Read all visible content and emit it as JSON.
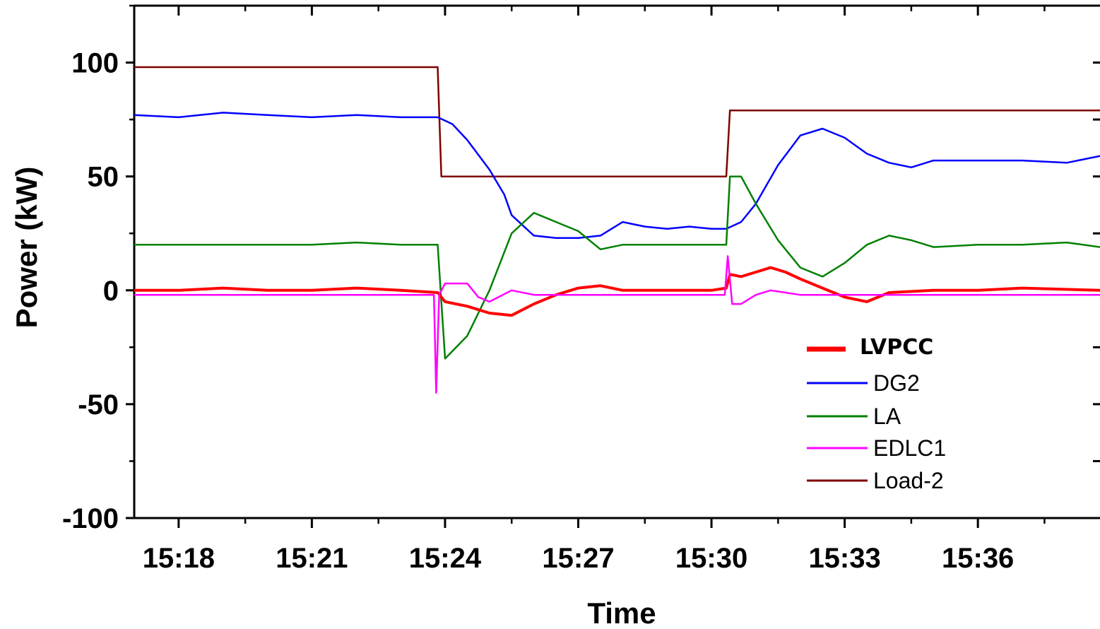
{
  "chart_data": {
    "type": "line",
    "title": "",
    "xlabel": "Time",
    "ylabel": "Power (kW)",
    "xlim": [
      "15:17:00",
      "15:38:45"
    ],
    "ylim": [
      -100,
      125
    ],
    "x_ticks": [
      "15:18",
      "15:21",
      "15:24",
      "15:27",
      "15:30",
      "15:33",
      "15:36"
    ],
    "y_ticks": [
      "100",
      "50",
      "0",
      "-50",
      "-100"
    ],
    "legend_position": "lower-right",
    "grid": false,
    "series": [
      {
        "name": "LVPCC",
        "color": "#ff0000",
        "x": [
          "15:17:00",
          "15:18:00",
          "15:19:00",
          "15:20:00",
          "15:21:00",
          "15:22:00",
          "15:23:00",
          "15:23:50",
          "15:24:00",
          "15:24:30",
          "15:25:00",
          "15:25:30",
          "15:26:00",
          "15:26:30",
          "15:27:00",
          "15:27:30",
          "15:28:00",
          "15:29:00",
          "15:30:00",
          "15:30:20",
          "15:30:25",
          "15:30:40",
          "15:31:00",
          "15:31:20",
          "15:31:40",
          "15:32:00",
          "15:32:30",
          "15:33:00",
          "15:33:30",
          "15:34:00",
          "15:35:00",
          "15:36:00",
          "15:37:00",
          "15:38:45"
        ],
        "y": [
          0,
          0,
          1,
          0,
          0,
          1,
          0,
          -1,
          -5,
          -7,
          -10,
          -11,
          -6,
          -2,
          1,
          2,
          0,
          0,
          0,
          1,
          7,
          6,
          8,
          10,
          8,
          5,
          1,
          -3,
          -5,
          -1,
          0,
          0,
          1,
          0
        ]
      },
      {
        "name": "DG2",
        "color": "#0000ff",
        "x": [
          "15:17:00",
          "15:18:00",
          "15:19:00",
          "15:20:00",
          "15:21:00",
          "15:22:00",
          "15:23:00",
          "15:23:50",
          "15:24:10",
          "15:24:30",
          "15:25:00",
          "15:25:20",
          "15:25:30",
          "15:26:00",
          "15:26:30",
          "15:27:00",
          "15:27:30",
          "15:28:00",
          "15:28:30",
          "15:29:00",
          "15:29:30",
          "15:30:00",
          "15:30:20",
          "15:30:40",
          "15:31:00",
          "15:31:30",
          "15:32:00",
          "15:32:30",
          "15:33:00",
          "15:33:30",
          "15:34:00",
          "15:34:30",
          "15:35:00",
          "15:36:00",
          "15:37:00",
          "15:38:00",
          "15:38:45"
        ],
        "y": [
          77,
          76,
          78,
          77,
          76,
          77,
          76,
          76,
          73,
          66,
          53,
          42,
          33,
          24,
          23,
          23,
          24,
          30,
          28,
          27,
          28,
          27,
          27,
          30,
          38,
          55,
          68,
          71,
          67,
          60,
          56,
          54,
          57,
          57,
          57,
          56,
          59
        ]
      },
      {
        "name": "LA",
        "color": "#008000",
        "x": [
          "15:17:00",
          "15:18:00",
          "15:19:00",
          "15:20:00",
          "15:21:00",
          "15:22:00",
          "15:23:00",
          "15:23:50",
          "15:23:55",
          "15:24:00",
          "15:24:30",
          "15:25:00",
          "15:25:30",
          "15:26:00",
          "15:26:30",
          "15:27:00",
          "15:27:30",
          "15:28:00",
          "15:29:00",
          "15:30:00",
          "15:30:20",
          "15:30:25",
          "15:30:40",
          "15:31:00",
          "15:31:30",
          "15:32:00",
          "15:32:30",
          "15:33:00",
          "15:33:30",
          "15:34:00",
          "15:34:30",
          "15:35:00",
          "15:36:00",
          "15:37:00",
          "15:38:00",
          "15:38:45"
        ],
        "y": [
          20,
          20,
          20,
          20,
          20,
          21,
          20,
          20,
          -5,
          -30,
          -20,
          0,
          25,
          34,
          30,
          26,
          18,
          20,
          20,
          20,
          20,
          50,
          50,
          38,
          22,
          10,
          6,
          12,
          20,
          24,
          22,
          19,
          20,
          20,
          21,
          19
        ]
      },
      {
        "name": "EDLC1",
        "color": "#ff00ff",
        "x": [
          "15:17:00",
          "15:18:00",
          "15:19:00",
          "15:20:00",
          "15:21:00",
          "15:22:00",
          "15:23:00",
          "15:23:45",
          "15:23:48",
          "15:23:52",
          "15:24:00",
          "15:24:30",
          "15:24:45",
          "15:25:00",
          "15:25:30",
          "15:26:00",
          "15:26:30",
          "15:27:00",
          "15:28:00",
          "15:29:00",
          "15:30:00",
          "15:30:18",
          "15:30:22",
          "15:30:28",
          "15:30:40",
          "15:31:00",
          "15:31:20",
          "15:31:40",
          "15:32:00",
          "15:33:00",
          "15:34:00",
          "15:35:00",
          "15:36:00",
          "15:37:00",
          "15:38:45"
        ],
        "y": [
          -2,
          -2,
          -2,
          -2,
          -2,
          -2,
          -2,
          -2,
          -45,
          -2,
          3,
          3,
          -3,
          -5,
          0,
          -2,
          -2,
          -2,
          -2,
          -2,
          -2,
          -2,
          15,
          -6,
          -6,
          -2,
          0,
          -1,
          -2,
          -2,
          -2,
          -2,
          -2,
          -2,
          -2
        ]
      },
      {
        "name": "Load-2",
        "color": "#800000",
        "x": [
          "15:17:00",
          "15:23:50",
          "15:23:55",
          "15:30:20",
          "15:30:25",
          "15:38:45"
        ],
        "y": [
          98,
          98,
          50,
          50,
          79,
          79
        ]
      }
    ]
  }
}
